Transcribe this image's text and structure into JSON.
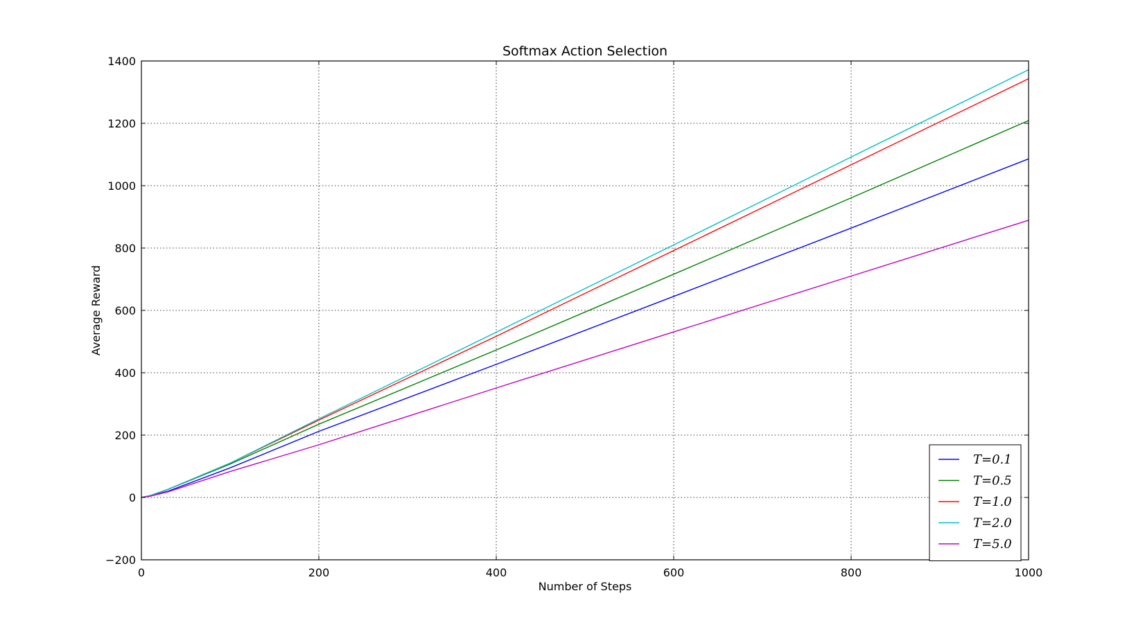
{
  "chart_data": {
    "type": "line",
    "title": "Softmax Action Selection",
    "xlabel": "Number of Steps",
    "ylabel": "Average Reward",
    "xlim": [
      0,
      1000
    ],
    "ylim": [
      -200,
      1400
    ],
    "xticks": [
      0,
      200,
      400,
      600,
      800,
      1000
    ],
    "yticks": [
      -200,
      0,
      200,
      400,
      600,
      800,
      1000,
      1200,
      1400
    ],
    "grid": true,
    "legend_position": "lower-right",
    "x": [
      0,
      10,
      30,
      100,
      200,
      400,
      600,
      800,
      1000
    ],
    "series": [
      {
        "name": "T=0.1",
        "color": "#0000ff",
        "values": [
          0,
          5,
          20,
          95,
          212,
          427,
          645,
          864,
          1086
        ]
      },
      {
        "name": "T=0.5",
        "color": "#008000",
        "values": [
          0,
          6,
          26,
          107,
          235,
          473,
          716,
          961,
          1209
        ]
      },
      {
        "name": "T=1.0",
        "color": "#ff0000",
        "values": [
          0,
          6,
          26,
          110,
          248,
          517,
          792,
          1067,
          1343
        ]
      },
      {
        "name": "T=2.0",
        "color": "#00bfbf",
        "values": [
          0,
          6,
          26,
          110,
          252,
          530,
          810,
          1092,
          1372
        ]
      },
      {
        "name": "T=5.0",
        "color": "#bf00bf",
        "values": [
          0,
          4,
          18,
          83,
          169,
          351,
          531,
          710,
          889
        ]
      }
    ]
  }
}
